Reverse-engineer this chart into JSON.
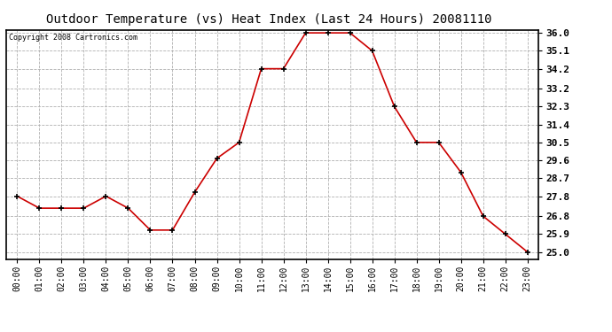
{
  "title": "Outdoor Temperature (vs) Heat Index (Last 24 Hours) 20081110",
  "copyright": "Copyright 2008 Cartronics.com",
  "hours": [
    "00:00",
    "01:00",
    "02:00",
    "03:00",
    "04:00",
    "05:00",
    "06:00",
    "07:00",
    "08:00",
    "09:00",
    "10:00",
    "11:00",
    "12:00",
    "13:00",
    "14:00",
    "15:00",
    "16:00",
    "17:00",
    "18:00",
    "19:00",
    "20:00",
    "21:00",
    "22:00",
    "23:00"
  ],
  "values": [
    27.8,
    27.2,
    27.2,
    27.2,
    27.8,
    27.2,
    26.1,
    26.1,
    28.0,
    29.7,
    30.5,
    34.2,
    34.2,
    36.0,
    36.0,
    36.0,
    35.1,
    32.3,
    30.5,
    30.5,
    29.0,
    26.8,
    25.9,
    25.0
  ],
  "ylim_min": 25.0,
  "ylim_max": 36.0,
  "yticks": [
    25.0,
    25.9,
    26.8,
    27.8,
    28.7,
    29.6,
    30.5,
    31.4,
    32.3,
    33.2,
    34.2,
    35.1,
    36.0
  ],
  "line_color": "#cc0000",
  "marker": "+",
  "marker_color": "#000000",
  "bg_color": "#ffffff",
  "grid_color": "#b0b0b0",
  "title_fontsize": 10,
  "copyright_fontsize": 6,
  "axis_fontsize": 7,
  "ytick_fontsize": 8
}
